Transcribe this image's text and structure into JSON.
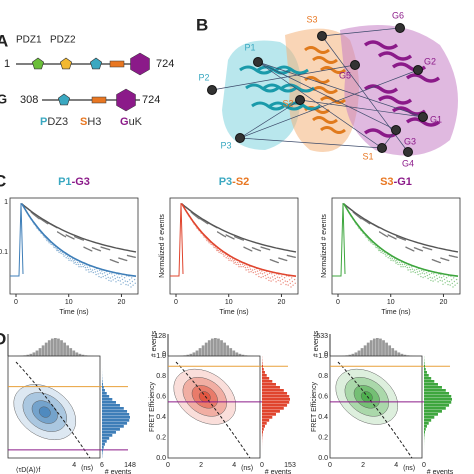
{
  "panel_a": {
    "label": "A",
    "domains_top": [
      "PDZ1",
      "PDZ2"
    ],
    "construct_1": {
      "start": "1",
      "end": "724"
    },
    "construct_2": {
      "name": "G",
      "start": "308",
      "end": "724"
    },
    "legend": [
      {
        "initial": "P",
        "rest": "DZ3",
        "color": "#3aa8c1"
      },
      {
        "initial": "S",
        "rest": "H3",
        "color": "#e87722"
      },
      {
        "initial": "G",
        "rest": "uK",
        "color": "#8b1a89"
      }
    ]
  },
  "panel_b": {
    "label": "B",
    "sites": [
      "P1",
      "P2",
      "P3",
      "S3",
      "S2",
      "S1",
      "G6",
      "G5",
      "G2",
      "G1",
      "G4",
      "G3"
    ]
  },
  "panel_c": {
    "label": "C",
    "y_label": "Normalized # events",
    "x_label": "Time (ns)",
    "plots": [
      {
        "title_parts": [
          {
            "text": "P1",
            "color": "#3aa8c1"
          },
          {
            "text": "-G3",
            "color": "#8b1a89"
          }
        ],
        "color": "#3e7eb8",
        "y_ticks": [
          "1",
          "0.1"
        ],
        "x_ticks": [
          "0",
          "10",
          "20"
        ]
      },
      {
        "title_parts": [
          {
            "text": "P3",
            "color": "#3aa8c1"
          },
          {
            "text": "-S2",
            "color": "#e87722"
          }
        ],
        "color": "#e0452e",
        "y_ticks": [],
        "x_ticks": [
          "0",
          "10",
          "20"
        ]
      },
      {
        "title_parts": [
          {
            "text": "S3",
            "color": "#e87722"
          },
          {
            "text": "-G1",
            "color": "#8b1a89"
          }
        ],
        "color": "#3ea63e",
        "y_ticks": [],
        "x_ticks": [
          "0",
          "10",
          "20"
        ]
      }
    ]
  },
  "panel_d": {
    "label": "D",
    "x_label": "⟨τD(A)⟩f",
    "x_unit": "(ns)",
    "side_label": "# events",
    "plots": [
      {
        "color": "#3e7eb8",
        "y_label": null,
        "top_label": null,
        "top_ticks": [],
        "y_ticks": [],
        "x_ticks": [
          "4"
        ],
        "side_ticks": [
          "6",
          "148"
        ]
      },
      {
        "color": "#e0452e",
        "y_label": "FRET Efficiency",
        "top_label": "# events",
        "top_ticks": [
          "128",
          "0"
        ],
        "y_ticks": [
          "1.0",
          "0.8",
          "0.6",
          "0.4",
          "0.2",
          "0.0"
        ],
        "x_ticks": [
          "0",
          "2",
          "4"
        ],
        "side_ticks": [
          "0",
          "153"
        ]
      },
      {
        "color": "#3ea63e",
        "y_label": "FRET Efficiency",
        "top_label": "# events",
        "top_ticks": [
          "533",
          "0"
        ],
        "y_ticks": [
          "1.0",
          "0.8",
          "0.6",
          "0.4",
          "0.2",
          "0.0"
        ],
        "x_ticks": [
          "0",
          "2",
          "4"
        ],
        "side_ticks": [
          "0"
        ]
      }
    ]
  }
}
